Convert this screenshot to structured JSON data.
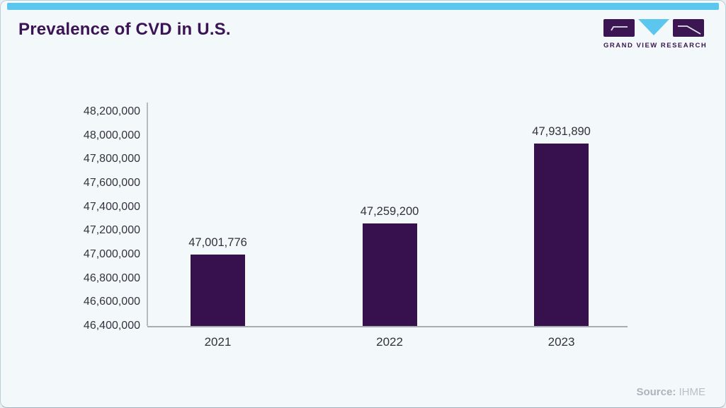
{
  "card": {
    "title": "Prevalence of CVD in U.S.",
    "accent_color": "#5bc6ee",
    "background_color": "#f3f8fb",
    "title_color": "#3a1454"
  },
  "logo": {
    "text": "GRAND VIEW RESEARCH",
    "purple": "#3b1652",
    "blue": "#5bc6ee"
  },
  "source": {
    "label": "Source:",
    "value": "IHME"
  },
  "chart_data": {
    "type": "bar",
    "title": "Prevalence of CVD in U.S.",
    "categories": [
      "2021",
      "2022",
      "2023"
    ],
    "values": [
      47001776,
      47259200,
      47931890
    ],
    "value_labels": [
      "47,001,776",
      "47,259,200",
      "47,931,890"
    ],
    "xlabel": "",
    "ylabel": "",
    "ylim": [
      46400000,
      48200000
    ],
    "y_ticks": [
      "46,400,000",
      "46,600,000",
      "46,800,000",
      "47,000,000",
      "47,200,000",
      "47,400,000",
      "47,600,000",
      "47,800,000",
      "48,000,000",
      "48,200,000"
    ],
    "bar_color": "#37114e",
    "grid": "off",
    "legend": "none"
  }
}
